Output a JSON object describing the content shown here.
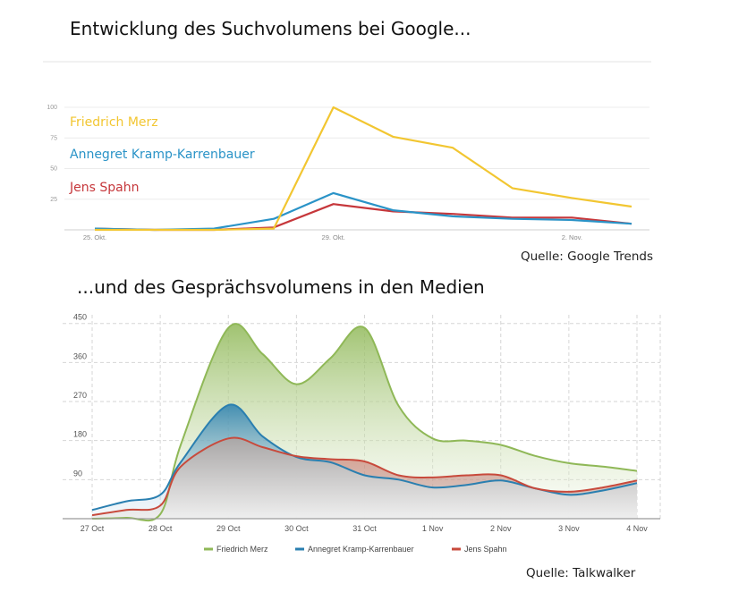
{
  "title_top": "Entwicklung des Suchvolumens bei Google...",
  "title_bottom": "...und des Gesprächsvolumens in den Medien",
  "source_top": "Quelle: Google Trends",
  "source_bottom": "Quelle: Talkwalker",
  "colors": {
    "merz_top": "#f2c631",
    "akk_top": "#2a93c7",
    "spahn_top": "#c6373b",
    "merz_bottom": "#8fb857",
    "akk_bottom": "#2a7fb0",
    "spahn_bottom": "#c84a3c"
  },
  "chart_data": [
    {
      "type": "line",
      "x_ticks": [
        "25. Okt.",
        "29. Okt.",
        "2. Nov."
      ],
      "y_ticks": [
        100,
        75,
        50,
        25
      ],
      "ylim": [
        0,
        100
      ],
      "xlim": [
        0,
        9
      ],
      "x_tick_positions": [
        0,
        4,
        8
      ],
      "x": [
        0,
        1,
        2,
        3,
        4,
        5,
        6,
        7,
        8,
        9
      ],
      "series": [
        {
          "name": "Friedrich Merz",
          "values": [
            0,
            0,
            0,
            1,
            100,
            76,
            67,
            34,
            26,
            19
          ]
        },
        {
          "name": "Annegret Kramp-Karrenbauer",
          "values": [
            1,
            0,
            1,
            9,
            30,
            16,
            11,
            9,
            8,
            5
          ]
        },
        {
          "name": "Jens Spahn",
          "values": [
            1,
            0,
            0,
            2,
            21,
            15,
            13,
            10,
            10,
            5
          ]
        }
      ],
      "grid": true,
      "legend": "top-left"
    },
    {
      "type": "area",
      "categories": [
        "27 Oct",
        "28 Oct",
        "29 Oct",
        "30 Oct",
        "31 Oct",
        "1 Nov",
        "2 Nov",
        "3 Nov",
        "4 Nov"
      ],
      "x": [
        0,
        0.5,
        1,
        1.3,
        2,
        2.5,
        3,
        3.5,
        4,
        4.5,
        5,
        5.5,
        6,
        6.5,
        7,
        7.5,
        8
      ],
      "y_ticks": [
        450,
        360,
        270,
        180,
        90
      ],
      "ylim": [
        0,
        470
      ],
      "series": [
        {
          "name": "Friedrich Merz",
          "values": [
            0,
            2,
            10,
            170,
            440,
            380,
            310,
            370,
            440,
            260,
            185,
            180,
            170,
            145,
            128,
            120,
            110
          ]
        },
        {
          "name": "Annegret Kramp-Karrenbauer",
          "values": [
            20,
            40,
            55,
            130,
            262,
            190,
            142,
            130,
            100,
            90,
            72,
            78,
            88,
            70,
            55,
            65,
            82
          ]
        },
        {
          "name": "Jens Spahn",
          "values": [
            8,
            20,
            30,
            120,
            185,
            165,
            144,
            137,
            132,
            100,
            95,
            100,
            100,
            70,
            62,
            72,
            88
          ]
        }
      ],
      "grid": true,
      "legend": "bottom"
    }
  ]
}
